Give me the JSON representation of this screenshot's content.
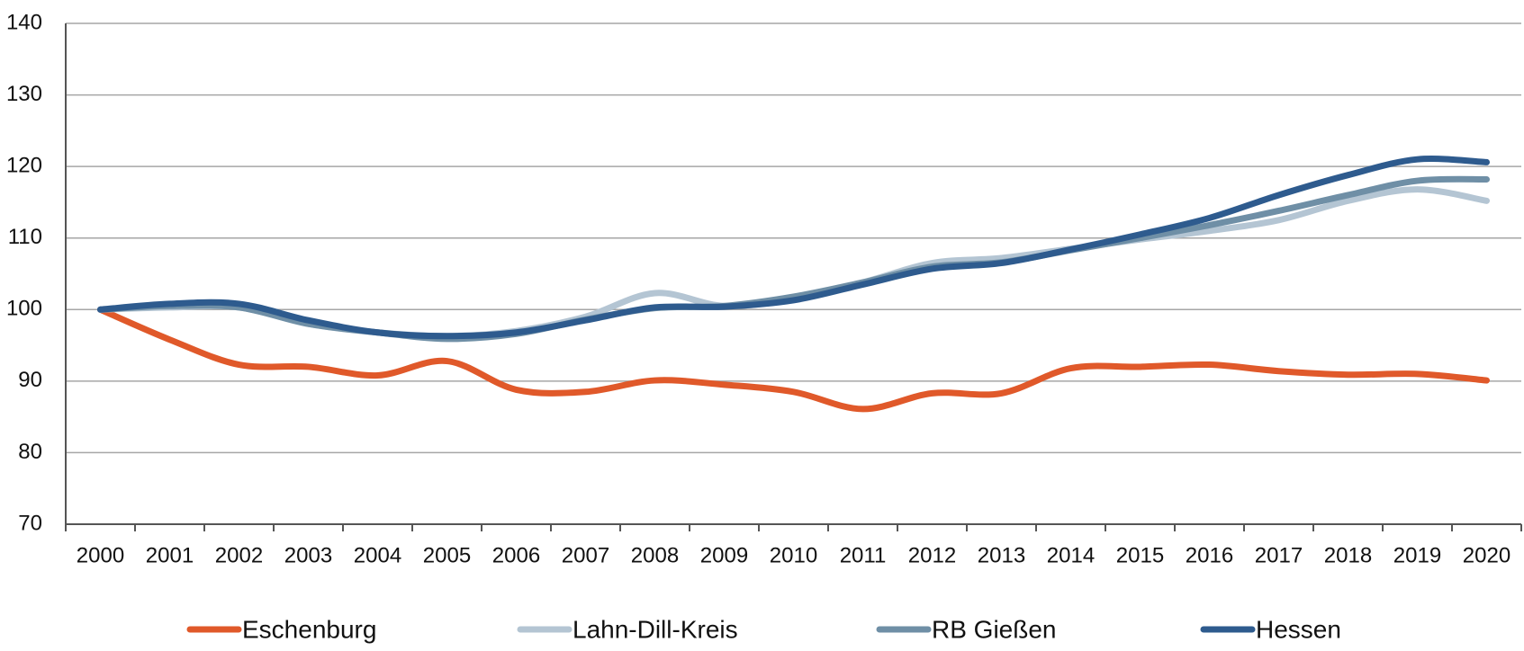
{
  "chart_data": {
    "type": "line",
    "categories": [
      "2000",
      "2001",
      "2002",
      "2003",
      "2004",
      "2005",
      "2006",
      "2007",
      "2008",
      "2009",
      "2010",
      "2011",
      "2012",
      "2013",
      "2014",
      "2015",
      "2016",
      "2017",
      "2018",
      "2019",
      "2020"
    ],
    "series": [
      {
        "name": "Eschenburg",
        "color": "#e0592a",
        "values": [
          100,
          95.8,
          92.3,
          92,
          90.8,
          92.8,
          88.8,
          88.5,
          90.1,
          89.5,
          88.5,
          86.1,
          88.3,
          88.3,
          91.8,
          92,
          92.3,
          91.4,
          90.9,
          91,
          90.1
        ]
      },
      {
        "name": "Lahn-Dill-Kreis",
        "color": "#b4c5d3",
        "values": [
          100,
          100.3,
          100.3,
          98,
          96.8,
          96.3,
          97,
          99,
          102.3,
          100.5,
          101.5,
          103.8,
          106.5,
          107.2,
          108.5,
          109.8,
          111,
          112.5,
          115.2,
          116.8,
          115.2
        ]
      },
      {
        "name": "RB Gießen",
        "color": "#6f8fa6",
        "values": [
          100,
          100.5,
          100.3,
          98,
          96.8,
          95.9,
          96.6,
          98.6,
          100.2,
          100.5,
          101.8,
          103.8,
          106,
          106.6,
          108.3,
          110,
          111.8,
          113.8,
          116,
          118,
          118.2
        ]
      },
      {
        "name": "Hessen",
        "color": "#2e5b8e",
        "values": [
          100,
          100.8,
          100.8,
          98.5,
          96.8,
          96.3,
          96.8,
          98.5,
          100.3,
          100.4,
          101.3,
          103.5,
          105.7,
          106.5,
          108.4,
          110.5,
          112.8,
          116,
          118.8,
          121,
          120.6
        ]
      }
    ],
    "ylim": [
      70,
      140
    ],
    "yticks": [
      70,
      80,
      90,
      100,
      110,
      120,
      130,
      140
    ],
    "grid": true,
    "legend": "bottom"
  }
}
